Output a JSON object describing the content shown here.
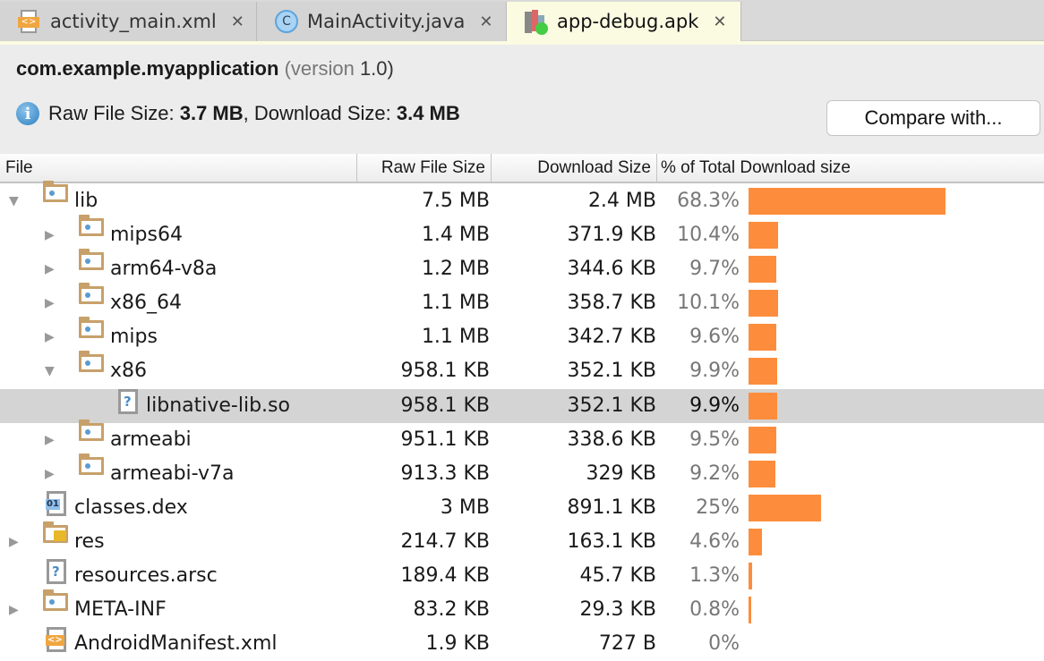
{
  "tabs": [
    {
      "label": "activity_main.xml",
      "icon": "xml-file-icon",
      "active": false
    },
    {
      "label": "MainActivity.java",
      "icon": "java-class-icon",
      "active": false
    },
    {
      "label": "app-debug.apk",
      "icon": "apk-icon",
      "active": true
    }
  ],
  "header": {
    "package": "com.example.myapplication",
    "version_label": "(version",
    "version": "1.0)",
    "info_prefix": "Raw File Size: ",
    "raw_size": "3.7 MB",
    "info_mid": ", Download Size: ",
    "download_size": "3.4 MB",
    "compare_button": "Compare with..."
  },
  "columns": [
    "File",
    "Raw File Size",
    "Download Size",
    "% of Total Download size"
  ],
  "colors": {
    "bar": "#fd8d3c",
    "selected_row": "#d4d4d4"
  },
  "rows": [
    {
      "name": "lib",
      "raw": "7.5 MB",
      "download": "2.4 MB",
      "percent": "68.3%",
      "pct": 68.3,
      "level": 0,
      "toggle": "expanded",
      "icon": "folder-icon"
    },
    {
      "name": "mips64",
      "raw": "1.4 MB",
      "download": "371.9 KB",
      "percent": "10.4%",
      "pct": 10.4,
      "level": 1,
      "toggle": "collapsed",
      "icon": "folder-icon"
    },
    {
      "name": "arm64-v8a",
      "raw": "1.2 MB",
      "download": "344.6 KB",
      "percent": "9.7%",
      "pct": 9.7,
      "level": 1,
      "toggle": "collapsed",
      "icon": "folder-icon"
    },
    {
      "name": "x86_64",
      "raw": "1.1 MB",
      "download": "358.7 KB",
      "percent": "10.1%",
      "pct": 10.1,
      "level": 1,
      "toggle": "collapsed",
      "icon": "folder-icon"
    },
    {
      "name": "mips",
      "raw": "1.1 MB",
      "download": "342.7 KB",
      "percent": "9.6%",
      "pct": 9.6,
      "level": 1,
      "toggle": "collapsed",
      "icon": "folder-icon"
    },
    {
      "name": "x86",
      "raw": "958.1 KB",
      "download": "352.1 KB",
      "percent": "9.9%",
      "pct": 9.9,
      "level": 1,
      "toggle": "expanded",
      "icon": "folder-icon"
    },
    {
      "name": "libnative-lib.so",
      "raw": "958.1 KB",
      "download": "352.1 KB",
      "percent": "9.9%",
      "pct": 9.9,
      "level": 2,
      "toggle": "none",
      "icon": "unknown-file-icon",
      "selected": true
    },
    {
      "name": "armeabi",
      "raw": "951.1 KB",
      "download": "338.6 KB",
      "percent": "9.5%",
      "pct": 9.5,
      "level": 1,
      "toggle": "collapsed",
      "icon": "folder-icon"
    },
    {
      "name": "armeabi-v7a",
      "raw": "913.3 KB",
      "download": "329 KB",
      "percent": "9.2%",
      "pct": 9.2,
      "level": 1,
      "toggle": "collapsed",
      "icon": "folder-icon"
    },
    {
      "name": "classes.dex",
      "raw": "3 MB",
      "download": "891.1 KB",
      "percent": "25%",
      "pct": 25,
      "level": 0,
      "toggle": "none",
      "icon": "dex-file-icon"
    },
    {
      "name": "res",
      "raw": "214.7 KB",
      "download": "163.1 KB",
      "percent": "4.6%",
      "pct": 4.6,
      "level": 0,
      "toggle": "collapsed",
      "icon": "resource-folder-icon"
    },
    {
      "name": "resources.arsc",
      "raw": "189.4 KB",
      "download": "45.7 KB",
      "percent": "1.3%",
      "pct": 1.3,
      "level": 0,
      "toggle": "none",
      "icon": "unknown-file-icon"
    },
    {
      "name": "META-INF",
      "raw": "83.2 KB",
      "download": "29.3 KB",
      "percent": "0.8%",
      "pct": 0.8,
      "level": 0,
      "toggle": "collapsed",
      "icon": "folder-icon"
    },
    {
      "name": "AndroidManifest.xml",
      "raw": "1.9 KB",
      "download": "727 B",
      "percent": "0%",
      "pct": 0,
      "level": 0,
      "toggle": "none",
      "icon": "xml-file-icon"
    }
  ]
}
